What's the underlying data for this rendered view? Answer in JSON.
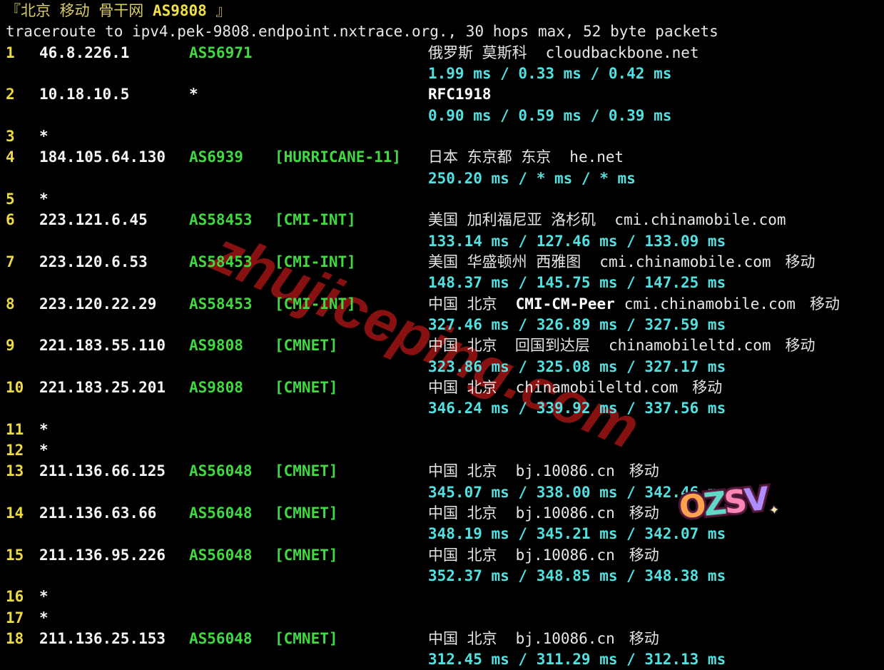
{
  "terminal": {
    "title_prefix": "『北京 移动 骨干网 ",
    "title_asn": "AS9808",
    "title_suffix": " 』",
    "subtitle": "traceroute to ipv4.pek-9808.endpoint.nxtrace.org., 30 hops max, 52 byte packets",
    "hops": [
      {
        "n": "1",
        "ip": "46.8.226.1",
        "as": "AS56971",
        "loc": "俄罗斯 莫斯科",
        "domain": "cloudbackbone.net",
        "rtt": "1.99 ms / 0.33 ms / 0.42 ms"
      },
      {
        "n": "2",
        "ip": "10.18.10.5",
        "as": "*",
        "peer": "RFC1918",
        "rtt": "0.90 ms / 0.59 ms / 0.39 ms"
      },
      {
        "n": "3",
        "ip": "*"
      },
      {
        "n": "4",
        "ip": "184.105.64.130",
        "as": "AS6939",
        "tag": "[HURRICANE-11]",
        "loc": "日本 东京都 东京",
        "domain": "he.net",
        "rtt": "250.20 ms / * ms / * ms"
      },
      {
        "n": "5",
        "ip": "*"
      },
      {
        "n": "6",
        "ip": "223.121.6.45",
        "as": "AS58453",
        "tag": "[CMI-INT]",
        "loc": "美国 加利福尼亚 洛杉矶",
        "domain": "cmi.chinamobile.com",
        "rtt": "133.14 ms / 127.46 ms / 133.09 ms"
      },
      {
        "n": "7",
        "ip": "223.120.6.53",
        "as": "AS58453",
        "tag": "[CMI-INT]",
        "loc": "美国 华盛顿州 西雅图",
        "domain": "cmi.chinamobile.com",
        "carrier": "移动",
        "rtt": "148.37 ms / 145.75 ms / 147.25 ms"
      },
      {
        "n": "8",
        "ip": "223.120.22.29",
        "as": "AS58453",
        "tag": "[CMI-INT]",
        "loc": "中国 北京",
        "peer": "CMI-CM-Peer",
        "domain": "cmi.chinamobile.com",
        "carrier": "移动",
        "rtt": "327.46 ms / 326.89 ms / 327.59 ms"
      },
      {
        "n": "9",
        "ip": "221.183.55.110",
        "as": "AS9808",
        "tag": "[CMNET]",
        "loc": "中国 北京  回国到达层",
        "domain": "chinamobileltd.com",
        "carrier": "移动",
        "rtt": "323.86 ms / 325.08 ms / 327.17 ms"
      },
      {
        "n": "10",
        "ip": "221.183.25.201",
        "as": "AS9808",
        "tag": "[CMNET]",
        "loc": "中国 北京",
        "domain": "chinamobileltd.com",
        "carrier": "移动",
        "rtt": "346.24 ms / 339.92 ms / 337.56 ms"
      },
      {
        "n": "11",
        "ip": "*"
      },
      {
        "n": "12",
        "ip": "*"
      },
      {
        "n": "13",
        "ip": "211.136.66.125",
        "as": "AS56048",
        "tag": "[CMNET]",
        "loc": "中国 北京",
        "domain": "bj.10086.cn",
        "carrier": "移动",
        "rtt": "345.07 ms / 338.00 ms / 342.46 ms"
      },
      {
        "n": "14",
        "ip": "211.136.63.66",
        "as": "AS56048",
        "tag": "[CMNET]",
        "loc": "中国 北京",
        "domain": "bj.10086.cn",
        "carrier": "移动",
        "rtt": "348.19 ms / 345.21 ms / 342.07 ms"
      },
      {
        "n": "15",
        "ip": "211.136.95.226",
        "as": "AS56048",
        "tag": "[CMNET]",
        "loc": "中国 北京",
        "domain": "bj.10086.cn",
        "carrier": "移动",
        "rtt": "352.37 ms / 348.85 ms / 348.38 ms"
      },
      {
        "n": "16",
        "ip": "*"
      },
      {
        "n": "17",
        "ip": "*"
      },
      {
        "n": "18",
        "ip": "211.136.25.153",
        "as": "AS56048",
        "tag": "[CMNET]",
        "loc": "中国 北京",
        "domain": "bj.10086.cn",
        "carrier": "移动",
        "rtt": "312.45 ms / 311.29 ms / 312.13 ms"
      }
    ],
    "watermark": "zhujiceping.com",
    "sticker": {
      "text": "OZSV",
      "sparkle": "✦",
      "letter_colors": [
        "#ffa24d",
        "#62d9c8",
        "#ff86b5",
        "#b08cff"
      ]
    },
    "colors": {
      "background": "#000000",
      "yellow_bold": "#f3e044",
      "yellow_dim": "#d8cc62",
      "green": "#41d941",
      "cyan": "#52e0e0",
      "white": "#f5f5f5",
      "watermark_red": "#8c1212"
    }
  }
}
